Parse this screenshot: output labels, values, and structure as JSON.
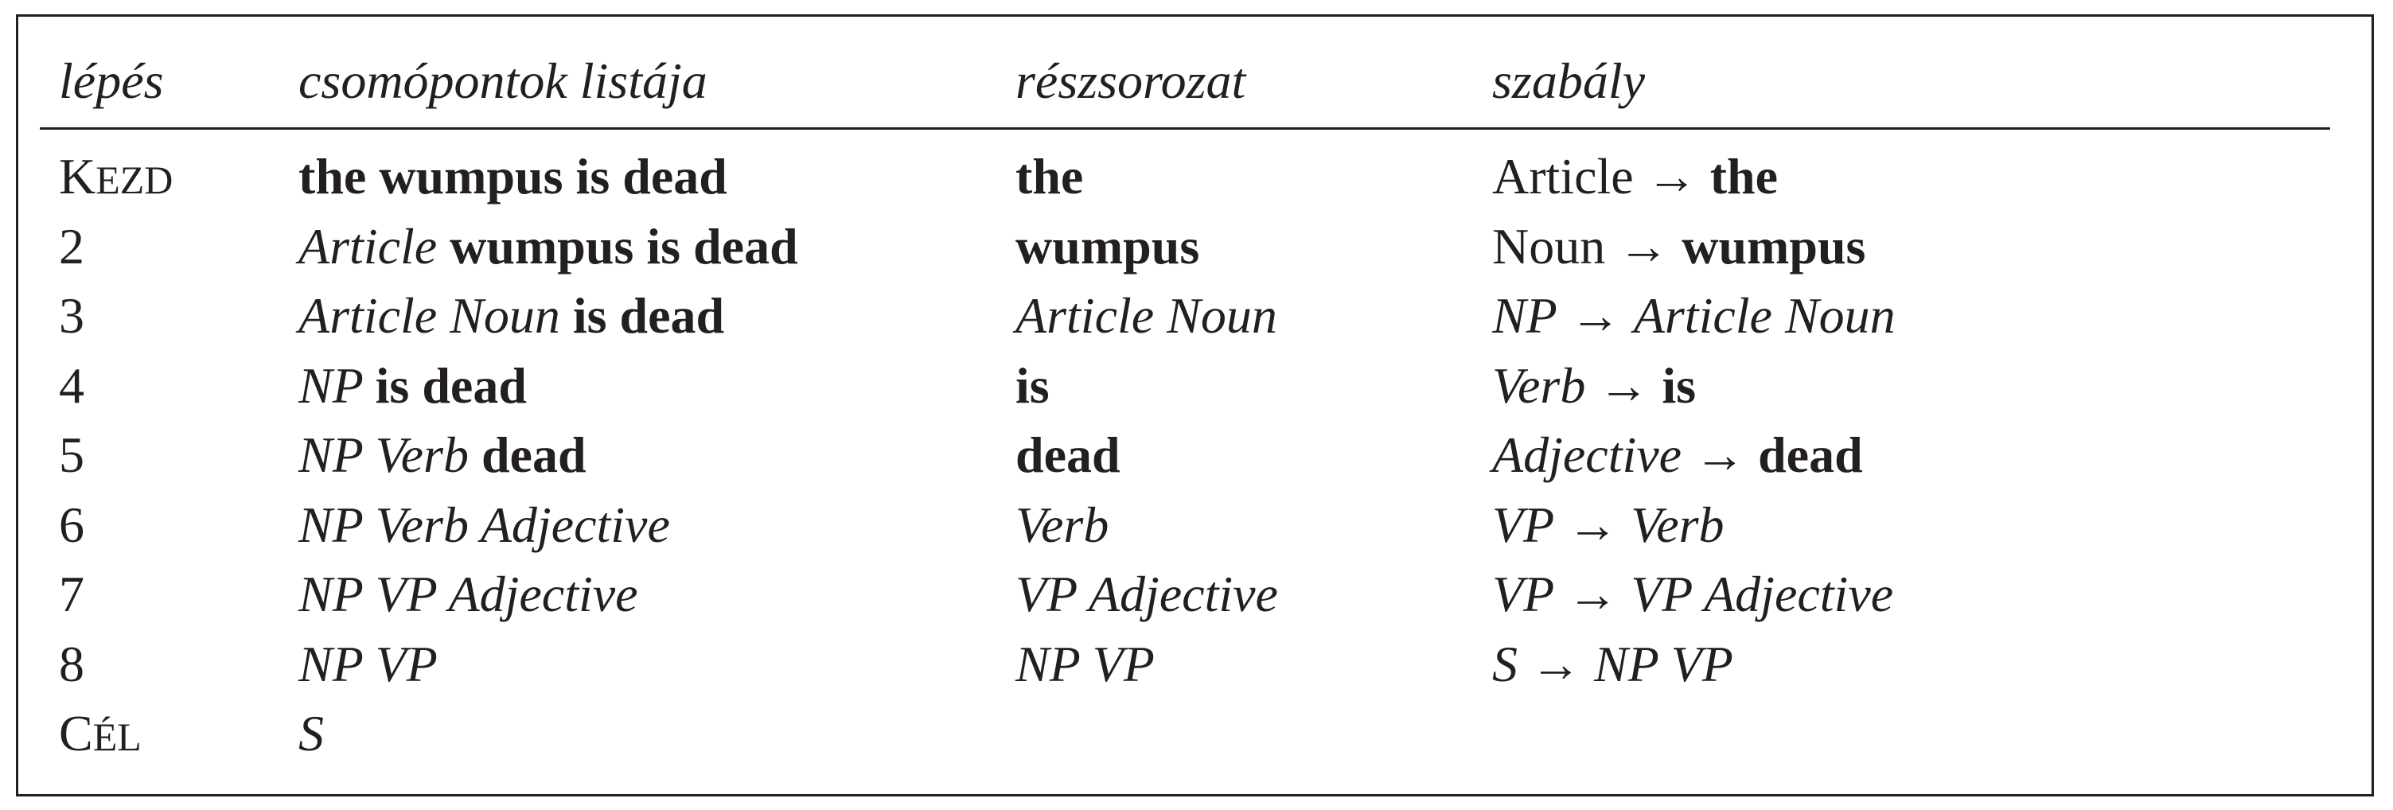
{
  "headers": {
    "step": "lépés",
    "nodes": "csomópontok listája",
    "subsequence": "részsorozat",
    "rule": "szabály"
  },
  "rows": [
    {
      "step": [
        {
          "t": "K",
          "c": "sc-big"
        },
        {
          "t": "EZD",
          "c": "sc-small"
        }
      ],
      "nodes": [
        {
          "t": "the wumpus is dead",
          "s": "b"
        }
      ],
      "sub": [
        {
          "t": "the",
          "s": "b"
        }
      ],
      "rule": [
        {
          "t": "Article → ",
          "s": "r"
        },
        {
          "t": "the",
          "s": "b"
        }
      ]
    },
    {
      "step": [
        {
          "t": "2",
          "c": "sc-big"
        }
      ],
      "nodes": [
        {
          "t": "Article ",
          "s": "i"
        },
        {
          "t": "wumpus is dead",
          "s": "b"
        }
      ],
      "sub": [
        {
          "t": "wumpus",
          "s": "b"
        }
      ],
      "rule": [
        {
          "t": "Noun → ",
          "s": "r"
        },
        {
          "t": "wumpus",
          "s": "b"
        }
      ]
    },
    {
      "step": [
        {
          "t": "3",
          "c": "sc-big"
        }
      ],
      "nodes": [
        {
          "t": "Article Noun ",
          "s": "i"
        },
        {
          "t": "is dead",
          "s": "b"
        }
      ],
      "sub": [
        {
          "t": "Article Noun",
          "s": "i"
        }
      ],
      "rule": [
        {
          "t": "NP",
          "s": "i"
        },
        {
          "t": " → ",
          "s": "r"
        },
        {
          "t": "Article Noun",
          "s": "i"
        }
      ]
    },
    {
      "step": [
        {
          "t": "4",
          "c": "sc-big"
        }
      ],
      "nodes": [
        {
          "t": "NP ",
          "s": "i"
        },
        {
          "t": "is dead",
          "s": "b"
        }
      ],
      "sub": [
        {
          "t": "is",
          "s": "b"
        }
      ],
      "rule": [
        {
          "t": "Verb",
          "s": "i"
        },
        {
          "t": " → ",
          "s": "r"
        },
        {
          "t": "is",
          "s": "b"
        }
      ]
    },
    {
      "step": [
        {
          "t": "5",
          "c": "sc-big"
        }
      ],
      "nodes": [
        {
          "t": "NP Verb ",
          "s": "i"
        },
        {
          "t": "dead",
          "s": "b"
        }
      ],
      "sub": [
        {
          "t": "dead",
          "s": "b"
        }
      ],
      "rule": [
        {
          "t": "Adjective",
          "s": "i"
        },
        {
          "t": " → ",
          "s": "r"
        },
        {
          "t": "dead",
          "s": "b"
        }
      ]
    },
    {
      "step": [
        {
          "t": "6",
          "c": "sc-big"
        }
      ],
      "nodes": [
        {
          "t": "NP Verb Adjective",
          "s": "i"
        }
      ],
      "sub": [
        {
          "t": "Verb",
          "s": "i"
        }
      ],
      "rule": [
        {
          "t": "VP",
          "s": "i"
        },
        {
          "t": " → ",
          "s": "r"
        },
        {
          "t": "Verb",
          "s": "i"
        }
      ]
    },
    {
      "step": [
        {
          "t": "7",
          "c": "sc-big"
        }
      ],
      "nodes": [
        {
          "t": "NP VP Adjective",
          "s": "i"
        }
      ],
      "sub": [
        {
          "t": "VP Adjective",
          "s": "i"
        }
      ],
      "rule": [
        {
          "t": "VP",
          "s": "i"
        },
        {
          "t": " → ",
          "s": "r"
        },
        {
          "t": "VP Adjective",
          "s": "i"
        }
      ]
    },
    {
      "step": [
        {
          "t": "8",
          "c": "sc-big"
        }
      ],
      "nodes": [
        {
          "t": "NP VP",
          "s": "i"
        }
      ],
      "sub": [
        {
          "t": "NP VP",
          "s": "i"
        }
      ],
      "rule": [
        {
          "t": "S",
          "s": "i"
        },
        {
          "t": " → ",
          "s": "r"
        },
        {
          "t": "NP VP",
          "s": "i"
        }
      ]
    },
    {
      "step": [
        {
          "t": "C",
          "c": "sc-big"
        },
        {
          "t": "ÉL",
          "c": "sc-small"
        }
      ],
      "nodes": [
        {
          "t": "S",
          "s": "i"
        }
      ],
      "sub": [],
      "rule": []
    }
  ]
}
